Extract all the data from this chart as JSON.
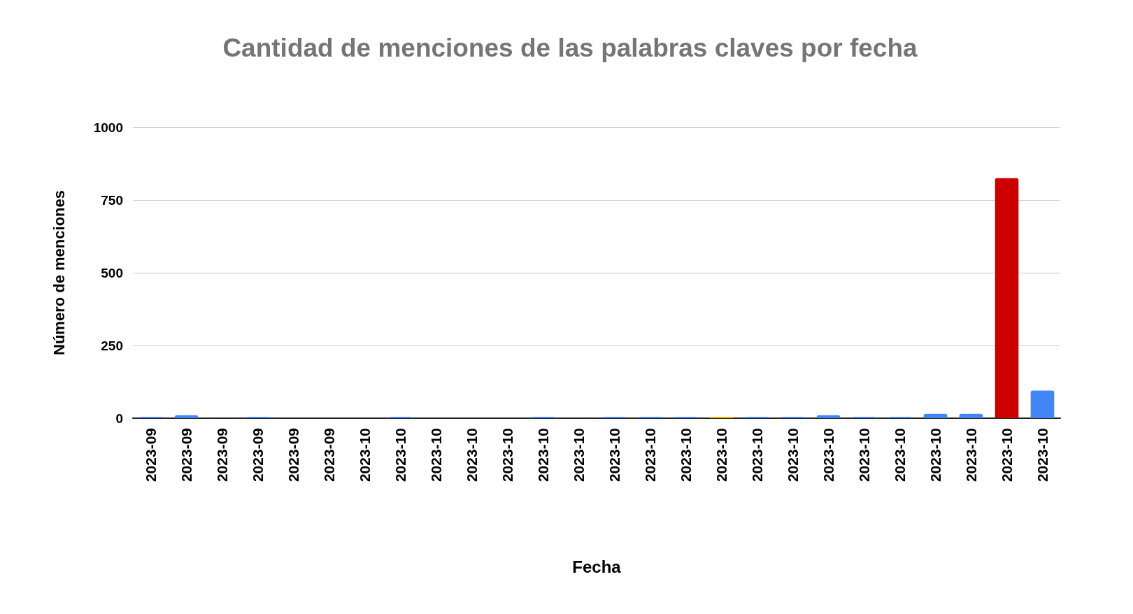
{
  "chart_data": {
    "type": "bar",
    "title": "Cantidad de menciones de las palabras claves por fecha",
    "xlabel": "Fecha",
    "ylabel": "Número de menciones",
    "categories": [
      "2023-09",
      "2023-09",
      "2023-09",
      "2023-09",
      "2023-09",
      "2023-09",
      "2023-10",
      "2023-10",
      "2023-10",
      "2023-10",
      "2023-10",
      "2023-10",
      "2023-10",
      "2023-10",
      "2023-10",
      "2023-10",
      "2023-10",
      "2023-10",
      "2023-10",
      "2023-10",
      "2023-10",
      "2023-10",
      "2023-10",
      "2023-10",
      "2023-10",
      "2023-10"
    ],
    "values": [
      5,
      10,
      0,
      5,
      0,
      0,
      0,
      5,
      0,
      0,
      0,
      5,
      0,
      5,
      5,
      5,
      5,
      5,
      5,
      10,
      5,
      5,
      15,
      15,
      825,
      95
    ],
    "colors": [
      "#4285f4",
      "#4285f4",
      "#4285f4",
      "#4285f4",
      "#4285f4",
      "#4285f4",
      "#4285f4",
      "#4285f4",
      "#4285f4",
      "#4285f4",
      "#4285f4",
      "#4285f4",
      "#4285f4",
      "#4285f4",
      "#4285f4",
      "#4285f4",
      "#f4b400",
      "#4285f4",
      "#4285f4",
      "#4285f4",
      "#4285f4",
      "#4285f4",
      "#4285f4",
      "#4285f4",
      "#cc0000",
      "#4285f4"
    ],
    "ylim": [
      0,
      1000
    ],
    "yticks": [
      0,
      250,
      500,
      750,
      1000
    ],
    "grid": "y"
  }
}
